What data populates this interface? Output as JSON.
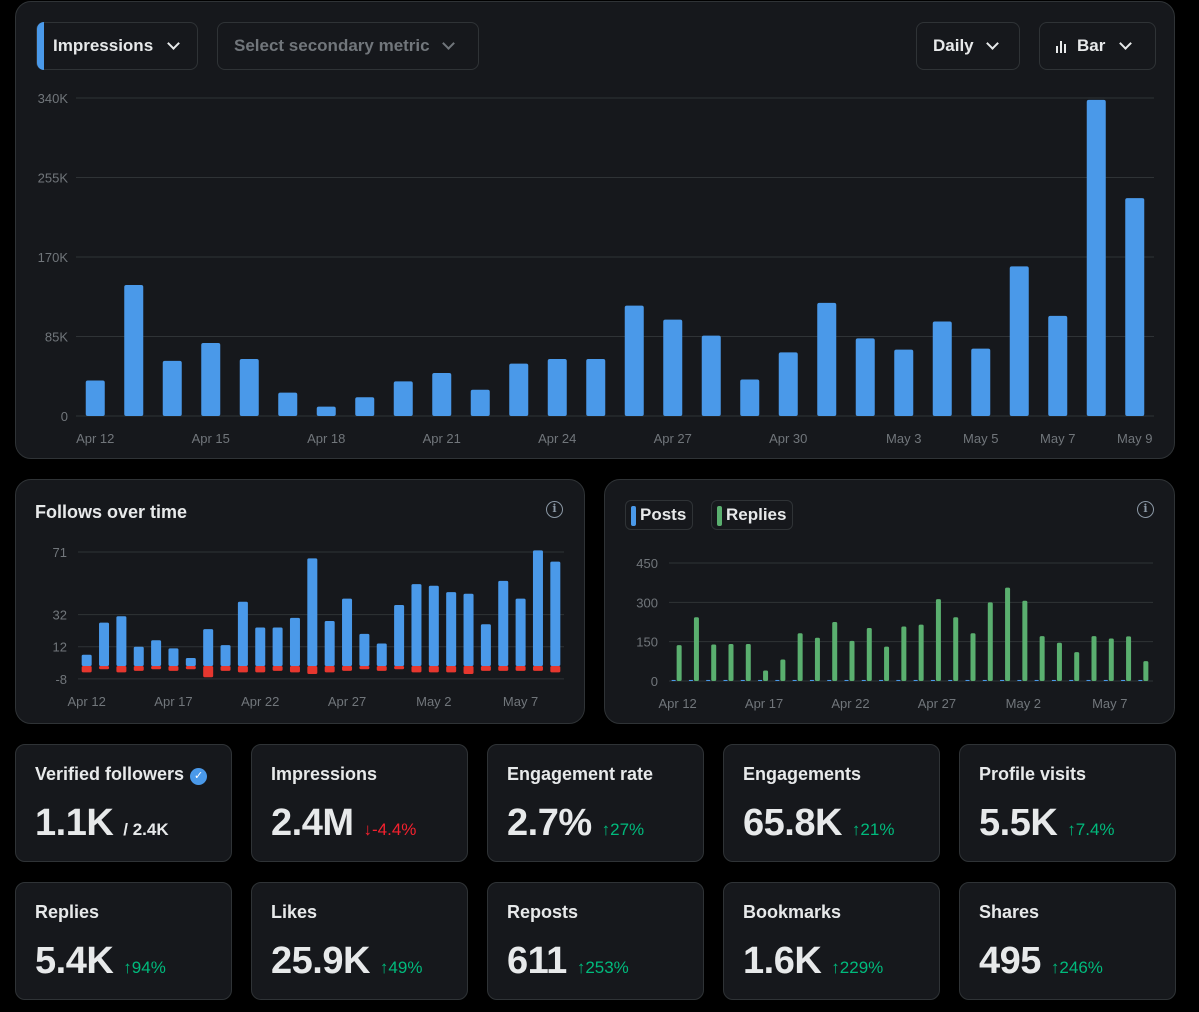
{
  "toolbar": {
    "primary_metric": "Impressions",
    "secondary_metric_placeholder": "Select secondary metric",
    "interval": "Daily",
    "chart_type": "Bar"
  },
  "follows_card": {
    "title": "Follows over time"
  },
  "posts_card": {
    "legend_posts": "Posts",
    "legend_replies": "Replies"
  },
  "colors": {
    "blue": "#4a99e9",
    "green": "#5aaf6f",
    "red": "#e6372f",
    "up": "#00ba7c",
    "down": "#f4212e"
  },
  "chart_data": [
    {
      "type": "bar",
      "title": "",
      "yticks": [
        0,
        85000,
        170000,
        255000,
        340000
      ],
      "ytick_labels": [
        "0",
        "85K",
        "170K",
        "255K",
        "340K"
      ],
      "ylim": [
        0,
        340000
      ],
      "xtick_labels": [
        "Apr 12",
        "Apr 15",
        "Apr 18",
        "Apr 21",
        "Apr 24",
        "Apr 27",
        "Apr 30",
        "May 3",
        "May 5",
        "May 7",
        "May 9"
      ],
      "xtick_index": [
        0,
        3,
        6,
        9,
        12,
        15,
        18,
        21,
        23,
        25,
        27
      ],
      "categories": [
        "Apr 12",
        "Apr 13",
        "Apr 14",
        "Apr 15",
        "Apr 16",
        "Apr 17",
        "Apr 18",
        "Apr 19",
        "Apr 20",
        "Apr 21",
        "Apr 22",
        "Apr 23",
        "Apr 24",
        "Apr 25",
        "Apr 26",
        "Apr 27",
        "Apr 28",
        "Apr 29",
        "Apr 30",
        "May 1",
        "May 2",
        "May 3",
        "May 4",
        "May 5",
        "May 6",
        "May 7",
        "May 8",
        "May 9"
      ],
      "series": [
        {
          "name": "Impressions",
          "values": [
            38000,
            140000,
            59000,
            78000,
            61000,
            25000,
            10000,
            20000,
            37000,
            46000,
            28000,
            56000,
            61000,
            61000,
            118000,
            103000,
            86000,
            39000,
            68000,
            121000,
            83000,
            71000,
            101000,
            72000,
            160000,
            107000,
            338000,
            233000
          ]
        }
      ],
      "grid": true
    },
    {
      "type": "bar",
      "title": "Follows over time",
      "yticks": [
        -8,
        12,
        32,
        71
      ],
      "ylim": [
        -8,
        71
      ],
      "xtick_labels": [
        "Apr 12",
        "Apr 17",
        "Apr 22",
        "Apr 27",
        "May 2",
        "May 7"
      ],
      "xtick_index": [
        0,
        5,
        10,
        15,
        20,
        25
      ],
      "series": [
        {
          "name": "Follows",
          "values": [
            7,
            27,
            31,
            12,
            16,
            11,
            5,
            23,
            13,
            40,
            24,
            24,
            30,
            67,
            28,
            42,
            20,
            14,
            38,
            51,
            50,
            46,
            45,
            26,
            53,
            42,
            72,
            65
          ]
        },
        {
          "name": "Unfollows",
          "values": [
            -4,
            -2,
            -4,
            -3,
            -2,
            -3,
            -2,
            -7,
            -3,
            -4,
            -4,
            -3,
            -4,
            -5,
            -4,
            -3,
            -2,
            -3,
            -2,
            -4,
            -4,
            -4,
            -5,
            -3,
            -3,
            -3,
            -3,
            -4
          ]
        }
      ],
      "grid": true
    },
    {
      "type": "bar",
      "title": "",
      "yticks": [
        0,
        150,
        300,
        450
      ],
      "ylim": [
        0,
        450
      ],
      "xtick_labels": [
        "Apr 12",
        "Apr 17",
        "Apr 22",
        "Apr 27",
        "May 2",
        "May 7"
      ],
      "xtick_index": [
        0,
        5,
        10,
        15,
        20,
        25
      ],
      "series": [
        {
          "name": "Posts",
          "values": [
            4,
            4,
            4,
            4,
            4,
            4,
            4,
            4,
            4,
            4,
            4,
            4,
            4,
            4,
            4,
            4,
            4,
            4,
            4,
            4,
            4,
            4,
            4,
            4,
            4,
            4,
            4,
            4
          ]
        },
        {
          "name": "Replies",
          "values": [
            137,
            243,
            139,
            141,
            141,
            40,
            82,
            182,
            165,
            225,
            153,
            202,
            131,
            208,
            215,
            312,
            243,
            182,
            300,
            356,
            306,
            171,
            146,
            110,
            171,
            162,
            170,
            76
          ]
        }
      ],
      "grid": true
    }
  ],
  "stats": [
    {
      "label": "Verified followers",
      "value": "1.1K",
      "sub": "/ 2.4K",
      "verified": true
    },
    {
      "label": "Impressions",
      "value": "2.4M",
      "delta": "-4.4%",
      "dir": "down"
    },
    {
      "label": "Engagement rate",
      "value": "2.7%",
      "delta": "27%",
      "dir": "up"
    },
    {
      "label": "Engagements",
      "value": "65.8K",
      "delta": "21%",
      "dir": "up"
    },
    {
      "label": "Profile visits",
      "value": "5.5K",
      "delta": "7.4%",
      "dir": "up"
    },
    {
      "label": "Replies",
      "value": "5.4K",
      "delta": "94%",
      "dir": "up"
    },
    {
      "label": "Likes",
      "value": "25.9K",
      "delta": "49%",
      "dir": "up"
    },
    {
      "label": "Reposts",
      "value": "611",
      "delta": "253%",
      "dir": "up"
    },
    {
      "label": "Bookmarks",
      "value": "1.6K",
      "delta": "229%",
      "dir": "up"
    },
    {
      "label": "Shares",
      "value": "495",
      "delta": "246%",
      "dir": "up"
    }
  ]
}
